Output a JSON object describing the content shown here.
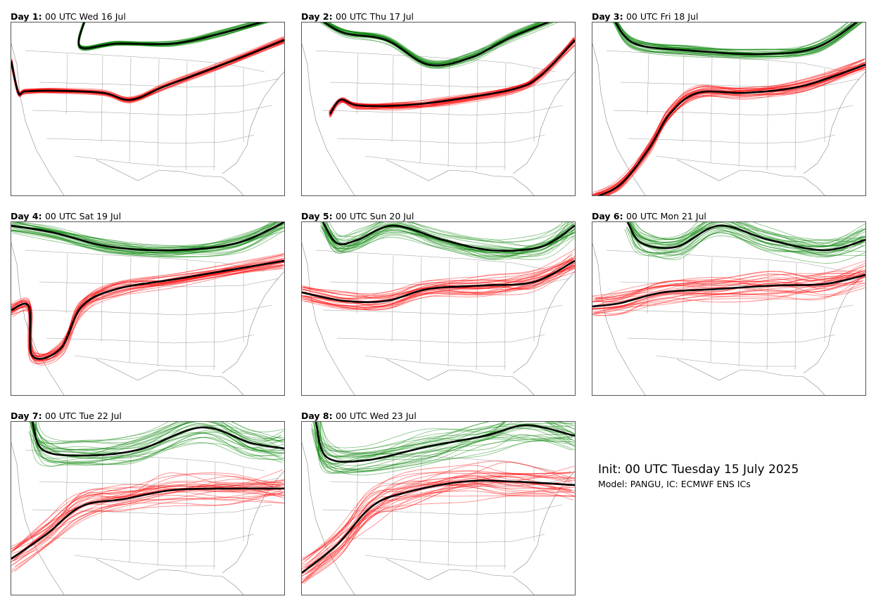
{
  "panels": [
    {
      "day": "Day 1",
      "time": "00 UTC Wed 16 Jul",
      "spread": 0.25,
      "red_path": [
        [
          0,
          55
        ],
        [
          10,
          100
        ],
        [
          20,
          98
        ],
        [
          60,
          97
        ],
        [
          130,
          100
        ],
        [
          170,
          110
        ],
        [
          220,
          90
        ],
        [
          300,
          60
        ],
        [
          388,
          25
        ]
      ],
      "green_path": [
        [
          105,
          -5
        ],
        [
          98,
          35
        ],
        [
          150,
          30
        ],
        [
          230,
          30
        ],
        [
          300,
          15
        ],
        [
          388,
          -10
        ]
      ]
    },
    {
      "day": "Day 2",
      "time": "00 UTC Thu 17 Jul",
      "spread": 0.6,
      "red_path": [
        [
          40,
          130
        ],
        [
          55,
          110
        ],
        [
          80,
          118
        ],
        [
          140,
          118
        ],
        [
          200,
          112
        ],
        [
          300,
          95
        ],
        [
          340,
          75
        ],
        [
          388,
          25
        ]
      ],
      "green_path": [
        [
          25,
          -5
        ],
        [
          60,
          15
        ],
        [
          120,
          25
        ],
        [
          180,
          60
        ],
        [
          240,
          50
        ],
        [
          300,
          20
        ],
        [
          388,
          -15
        ]
      ]
    },
    {
      "day": "Day 3",
      "time": "00 UTC Fri 18 Jul",
      "spread": 0.9,
      "red_path": [
        [
          0,
          250
        ],
        [
          40,
          230
        ],
        [
          80,
          180
        ],
        [
          110,
          130
        ],
        [
          150,
          100
        ],
        [
          220,
          100
        ],
        [
          300,
          90
        ],
        [
          388,
          60
        ]
      ],
      "green_path": [
        [
          30,
          -5
        ],
        [
          60,
          30
        ],
        [
          140,
          40
        ],
        [
          240,
          45
        ],
        [
          320,
          35
        ],
        [
          388,
          -10
        ]
      ]
    },
    {
      "day": "Day 4",
      "time": "00 UTC Sat 19 Jul",
      "spread": 1.3,
      "red_path": [
        [
          0,
          125
        ],
        [
          25,
          120
        ],
        [
          30,
          190
        ],
        [
          70,
          180
        ],
        [
          100,
          120
        ],
        [
          150,
          95
        ],
        [
          240,
          80
        ],
        [
          388,
          55
        ]
      ],
      "green_path": [
        [
          0,
          5
        ],
        [
          60,
          15
        ],
        [
          140,
          35
        ],
        [
          230,
          40
        ],
        [
          320,
          30
        ],
        [
          388,
          0
        ]
      ]
    },
    {
      "day": "Day 5",
      "time": "00 UTC Sun 20 Jul",
      "spread": 1.7,
      "red_path": [
        [
          0,
          100
        ],
        [
          60,
          112
        ],
        [
          120,
          112
        ],
        [
          180,
          95
        ],
        [
          260,
          90
        ],
        [
          330,
          85
        ],
        [
          388,
          55
        ]
      ],
      "green_path": [
        [
          30,
          0
        ],
        [
          50,
          30
        ],
        [
          80,
          25
        ],
        [
          130,
          5
        ],
        [
          200,
          25
        ],
        [
          270,
          40
        ],
        [
          340,
          35
        ],
        [
          388,
          5
        ]
      ]
    },
    {
      "day": "Day 6",
      "time": "00 UTC Mon 21 Jul",
      "spread": 2.1,
      "red_path": [
        [
          0,
          120
        ],
        [
          40,
          115
        ],
        [
          100,
          100
        ],
        [
          180,
          95
        ],
        [
          260,
          90
        ],
        [
          330,
          88
        ],
        [
          388,
          75
        ]
      ],
      "green_path": [
        [
          50,
          0
        ],
        [
          70,
          30
        ],
        [
          120,
          35
        ],
        [
          180,
          5
        ],
        [
          250,
          25
        ],
        [
          330,
          40
        ],
        [
          388,
          25
        ]
      ]
    },
    {
      "day": "Day 7",
      "time": "00 UTC Tue 22 Jul",
      "spread": 2.6,
      "red_path": [
        [
          0,
          195
        ],
        [
          50,
          160
        ],
        [
          100,
          120
        ],
        [
          160,
          110
        ],
        [
          230,
          97
        ],
        [
          310,
          95
        ],
        [
          388,
          95
        ]
      ],
      "green_path": [
        [
          30,
          0
        ],
        [
          45,
          40
        ],
        [
          100,
          48
        ],
        [
          180,
          40
        ],
        [
          270,
          8
        ],
        [
          340,
          30
        ],
        [
          388,
          38
        ]
      ]
    },
    {
      "day": "Day 8",
      "time": "00 UTC Wed 23 Jul",
      "spread": 3.0,
      "red_path": [
        [
          0,
          215
        ],
        [
          50,
          175
        ],
        [
          100,
          120
        ],
        [
          150,
          100
        ],
        [
          230,
          85
        ],
        [
          300,
          85
        ],
        [
          388,
          90
        ]
      ],
      "green_path": [
        [
          20,
          0
        ],
        [
          35,
          50
        ],
        [
          90,
          55
        ],
        [
          180,
          35
        ],
        [
          260,
          20
        ],
        [
          320,
          5
        ],
        [
          388,
          20
        ]
      ]
    }
  ],
  "info": {
    "title": "Init: 00 UTC Tuesday 15 July 2025",
    "subtitle": "Model: PANGU, IC: ECMWF ENS ICs"
  },
  "colors": {
    "ensemble_red": "#ff0000",
    "ensemble_green": "#008000",
    "mean_line": "#000000",
    "map_lines": "#999999"
  }
}
